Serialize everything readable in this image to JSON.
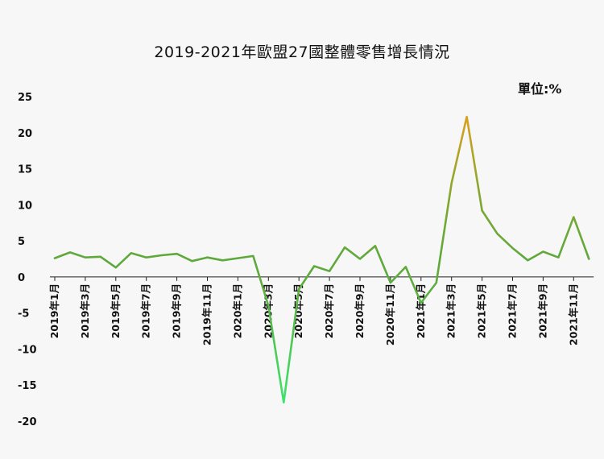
{
  "chart_data": {
    "type": "line",
    "title": "2019-2021年歐盟27國整體零售增長情況",
    "unit_label": "單位:%",
    "ylim": [
      -20,
      25
    ],
    "yticks": [
      "25",
      "20",
      "15",
      "10",
      "5",
      "0",
      "-5",
      "-10",
      "-15",
      "-20"
    ],
    "xtick_labels": [
      "2019年1月",
      "2019年3月",
      "2019年5月",
      "2019年7月",
      "2019年9月",
      "2019年11月",
      "2020年1月",
      "2020年3月",
      "2020年5月",
      "2020年7月",
      "2020年9月",
      "2020年11月",
      "2021年1月",
      "2021年3月",
      "2021年5月",
      "2021年7月",
      "2021年9月",
      "2021年11月"
    ],
    "grid": false,
    "series": [
      {
        "values": [
          2.6,
          3.4,
          2.7,
          2.8,
          1.3,
          3.3,
          2.7,
          3.0,
          3.2,
          2.2,
          2.7,
          2.3,
          2.6,
          2.9,
          -4.0,
          -17.4,
          -1.7,
          1.5,
          0.8,
          4.1,
          2.5,
          4.3,
          -0.8,
          1.4,
          -3.6,
          -0.8,
          13.0,
          22.2,
          9.2,
          6.0,
          4.0,
          2.3,
          3.5,
          2.7,
          8.3,
          2.5
        ]
      }
    ],
    "colors": {
      "line_main": "#5ea83c",
      "line_low": "#3de36d",
      "line_high": "#d9a020",
      "axis": "#222222"
    }
  }
}
